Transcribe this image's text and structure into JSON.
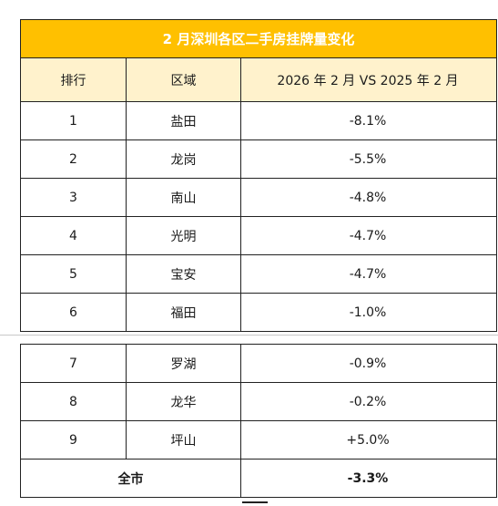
{
  "table": {
    "title": "2 月深圳各区二手房挂牌量变化",
    "headers": [
      "排行",
      "区域",
      "2026 年 2 月  VS 2025 年 2 月"
    ],
    "rows_part1": [
      {
        "rank": "1",
        "district": "盐田",
        "change": "-8.1%"
      },
      {
        "rank": "2",
        "district": "龙岗",
        "change": "-5.5%"
      },
      {
        "rank": "3",
        "district": "南山",
        "change": "-4.8%"
      },
      {
        "rank": "4",
        "district": "光明",
        "change": "-4.7%"
      },
      {
        "rank": "5",
        "district": "宝安",
        "change": "-4.7%"
      },
      {
        "rank": "6",
        "district": "福田",
        "change": "-1.0%"
      }
    ],
    "rows_part2": [
      {
        "rank": "7",
        "district": "罗湖",
        "change": "-0.9%"
      },
      {
        "rank": "8",
        "district": "龙华",
        "change": "-0.2%"
      },
      {
        "rank": "9",
        "district": "坪山",
        "change": "+5.0%"
      }
    ],
    "total": {
      "label": "全市",
      "change": "-3.3%"
    }
  }
}
